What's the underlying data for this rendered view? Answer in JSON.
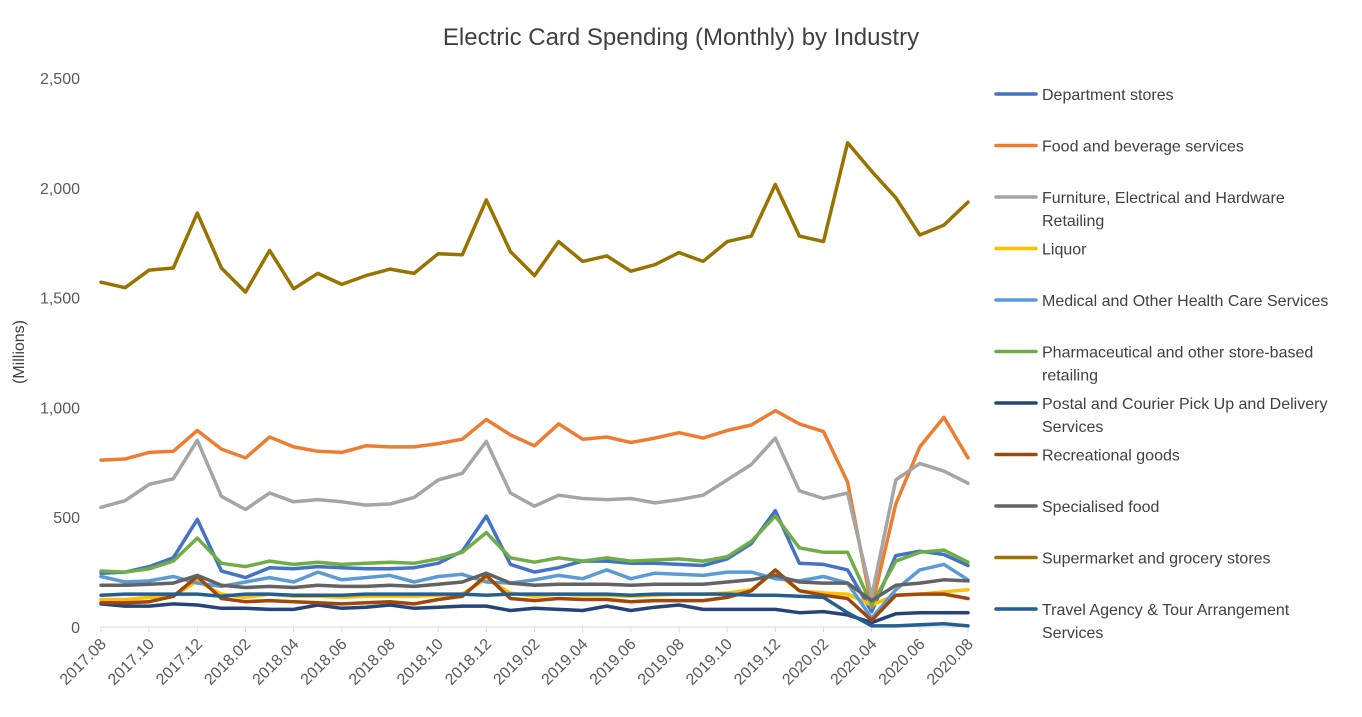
{
  "chart_data": {
    "type": "line",
    "title": "Electric Card Spending (Monthly) by Industry",
    "xlabel": "",
    "ylabel": "(Millions)",
    "ylim": [
      0,
      2500
    ],
    "yticks": [
      0,
      500,
      1000,
      1500,
      2000,
      2500
    ],
    "ytick_labels": [
      "0",
      "500",
      "1,000",
      "1,500",
      "2,000",
      "2,500"
    ],
    "grid": false,
    "legend_position": "right",
    "x": [
      "2017.08",
      "2017.09",
      "2017.10",
      "2017.11",
      "2017.12",
      "2018.01",
      "2018.02",
      "2018.03",
      "2018.04",
      "2018.05",
      "2018.06",
      "2018.07",
      "2018.08",
      "2018.09",
      "2018.10",
      "2018.11",
      "2018.12",
      "2019.01",
      "2019.02",
      "2019.03",
      "2019.04",
      "2019.05",
      "2019.06",
      "2019.07",
      "2019.08",
      "2019.09",
      "2019.10",
      "2019.11",
      "2019.12",
      "2020.01",
      "2020.02",
      "2020.03",
      "2020.04",
      "2020.05",
      "2020.06",
      "2020.07",
      "2020.08"
    ],
    "xtick_labels": [
      "2017.08",
      "2017.10",
      "2017.12",
      "2018.02",
      "2018.04",
      "2018.06",
      "2018.08",
      "2018.10",
      "2018.12",
      "2019.02",
      "2019.04",
      "2019.06",
      "2019.08",
      "2019.10",
      "2019.12",
      "2020.02",
      "2020.04",
      "2020.06",
      "2020.08"
    ],
    "series": [
      {
        "name": "Department stores",
        "color": "#4472C4",
        "legend": [
          "Department stores"
        ],
        "values": [
          245,
          250,
          275,
          315,
          490,
          255,
          225,
          270,
          265,
          275,
          270,
          265,
          265,
          270,
          290,
          345,
          505,
          285,
          250,
          270,
          300,
          300,
          290,
          290,
          285,
          280,
          310,
          380,
          530,
          290,
          285,
          260,
          70,
          325,
          345,
          330,
          280
        ]
      },
      {
        "name": "Food and beverage services",
        "color": "#ED7D31",
        "legend": [
          "Food and beverage services"
        ],
        "values": [
          760,
          765,
          795,
          800,
          895,
          810,
          770,
          865,
          820,
          800,
          795,
          825,
          820,
          820,
          835,
          855,
          945,
          875,
          825,
          925,
          855,
          865,
          840,
          860,
          885,
          860,
          895,
          920,
          985,
          925,
          890,
          660,
          90,
          560,
          820,
          955,
          770
        ]
      },
      {
        "name": "Furniture, Electrical and Hardware Retailing",
        "color": "#A5A5A5",
        "legend": [
          "Furniture, Electrical and Hardware",
          "Retailing"
        ],
        "values": [
          545,
          575,
          650,
          675,
          850,
          595,
          535,
          610,
          570,
          580,
          570,
          555,
          560,
          590,
          670,
          700,
          845,
          610,
          550,
          600,
          585,
          580,
          585,
          565,
          580,
          600,
          670,
          740,
          860,
          620,
          585,
          610,
          140,
          670,
          745,
          710,
          655
        ]
      },
      {
        "name": "Liquor",
        "color": "#FFC000",
        "legend": [
          "Liquor"
        ],
        "values": [
          125,
          125,
          135,
          140,
          210,
          150,
          135,
          150,
          140,
          140,
          135,
          140,
          140,
          140,
          145,
          150,
          220,
          155,
          140,
          150,
          145,
          145,
          140,
          145,
          150,
          150,
          155,
          170,
          250,
          165,
          155,
          150,
          100,
          145,
          150,
          160,
          170
        ]
      },
      {
        "name": "Medical and Other Health Care Services",
        "color": "#5B9BD5",
        "legend": [
          "Medical and Other Health Care Services"
        ],
        "values": [
          230,
          205,
          210,
          230,
          200,
          185,
          205,
          225,
          205,
          250,
          215,
          225,
          235,
          205,
          230,
          240,
          205,
          200,
          215,
          235,
          220,
          260,
          220,
          245,
          240,
          235,
          250,
          250,
          220,
          210,
          230,
          200,
          40,
          170,
          260,
          285,
          215
        ]
      },
      {
        "name": "Pharmaceutical and other store-based retailing",
        "color": "#70AD47",
        "legend": [
          "Pharmaceutical and other store-based",
          "retailing"
        ],
        "values": [
          255,
          250,
          265,
          300,
          405,
          290,
          275,
          300,
          285,
          295,
          285,
          290,
          295,
          290,
          310,
          340,
          430,
          315,
          295,
          315,
          300,
          315,
          300,
          305,
          310,
          300,
          320,
          390,
          505,
          360,
          340,
          340,
          100,
          300,
          340,
          350,
          295
        ]
      },
      {
        "name": "Postal and Courier Pick Up and Delivery Services",
        "color": "#264478",
        "legend": [
          "Postal and Courier Pick Up and Delivery",
          "Services"
        ],
        "values": [
          105,
          95,
          95,
          105,
          100,
          85,
          85,
          80,
          80,
          100,
          85,
          90,
          100,
          85,
          90,
          95,
          95,
          75,
          85,
          80,
          75,
          95,
          75,
          90,
          100,
          80,
          80,
          80,
          80,
          65,
          70,
          55,
          20,
          60,
          65,
          65,
          65
        ]
      },
      {
        "name": "Recreational goods",
        "color": "#9E480E",
        "legend": [
          "Recreational goods"
        ],
        "values": [
          110,
          110,
          115,
          140,
          230,
          130,
          115,
          120,
          115,
          110,
          105,
          110,
          115,
          105,
          125,
          140,
          235,
          130,
          120,
          130,
          125,
          125,
          115,
          120,
          120,
          120,
          135,
          165,
          260,
          165,
          145,
          130,
          30,
          145,
          150,
          150,
          130
        ]
      },
      {
        "name": "Specialised food",
        "color": "#636363",
        "legend": [
          "Specialised food"
        ],
        "values": [
          190,
          190,
          195,
          200,
          235,
          190,
          180,
          185,
          180,
          190,
          185,
          185,
          190,
          185,
          195,
          205,
          245,
          200,
          190,
          195,
          195,
          195,
          190,
          195,
          195,
          195,
          205,
          215,
          235,
          205,
          200,
          200,
          120,
          190,
          200,
          215,
          210
        ]
      },
      {
        "name": "Supermarket and grocery stores",
        "color": "#997300",
        "legend": [
          "Supermarket and grocery stores"
        ],
        "values": [
          1570,
          1545,
          1625,
          1635,
          1885,
          1635,
          1525,
          1715,
          1540,
          1610,
          1560,
          1600,
          1630,
          1610,
          1700,
          1695,
          1945,
          1710,
          1600,
          1755,
          1665,
          1690,
          1620,
          1650,
          1705,
          1665,
          1755,
          1780,
          2015,
          1780,
          1755,
          2205,
          2075,
          1955,
          1785,
          1830,
          1935
        ]
      },
      {
        "name": "Travel Agency & Tour Arrangement Services",
        "color": "#255E91",
        "legend": [
          "Travel Agency & Tour Arrangement",
          "Services"
        ],
        "values": [
          145,
          150,
          150,
          150,
          150,
          140,
          150,
          150,
          145,
          145,
          145,
          150,
          150,
          150,
          150,
          150,
          145,
          150,
          150,
          150,
          150,
          150,
          145,
          150,
          150,
          150,
          150,
          145,
          145,
          140,
          135,
          65,
          5,
          5,
          10,
          15,
          5
        ]
      }
    ]
  }
}
